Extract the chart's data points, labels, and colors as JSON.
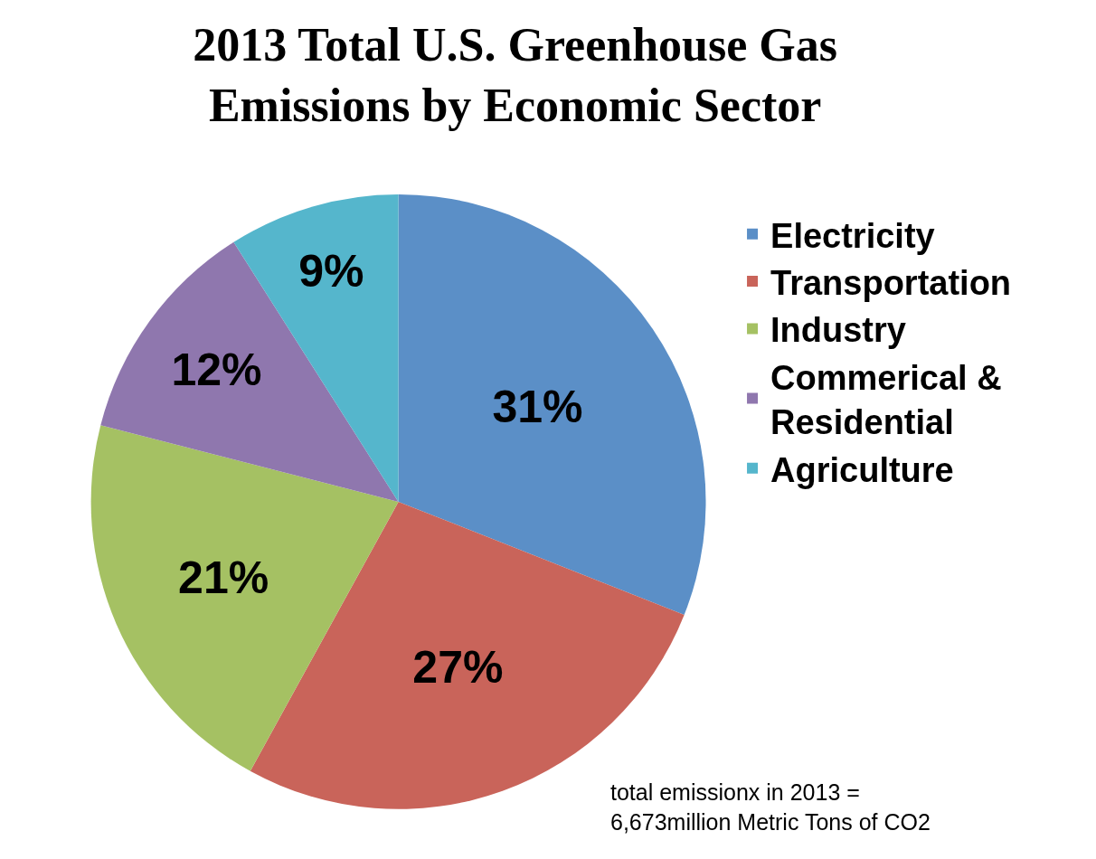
{
  "chart_data": {
    "type": "pie",
    "title": "2013 Total U.S. Greenhouse Gas\nEmissions by Economic Sector",
    "categories": [
      "Electricity",
      "Transportation",
      "Industry",
      "Commerical & Residential",
      "Agriculture"
    ],
    "values": [
      31,
      27,
      21,
      12,
      9
    ],
    "value_labels": [
      "31%",
      "27%",
      "21%",
      "12%",
      "9%"
    ],
    "colors": [
      "#5b8fc7",
      "#c9645a",
      "#a5c163",
      "#8f77ae",
      "#55b6cc"
    ],
    "legend": "right",
    "annotations": [
      "total emissionx in 2013 =\n6,673million Metric Tons of CO2"
    ]
  }
}
